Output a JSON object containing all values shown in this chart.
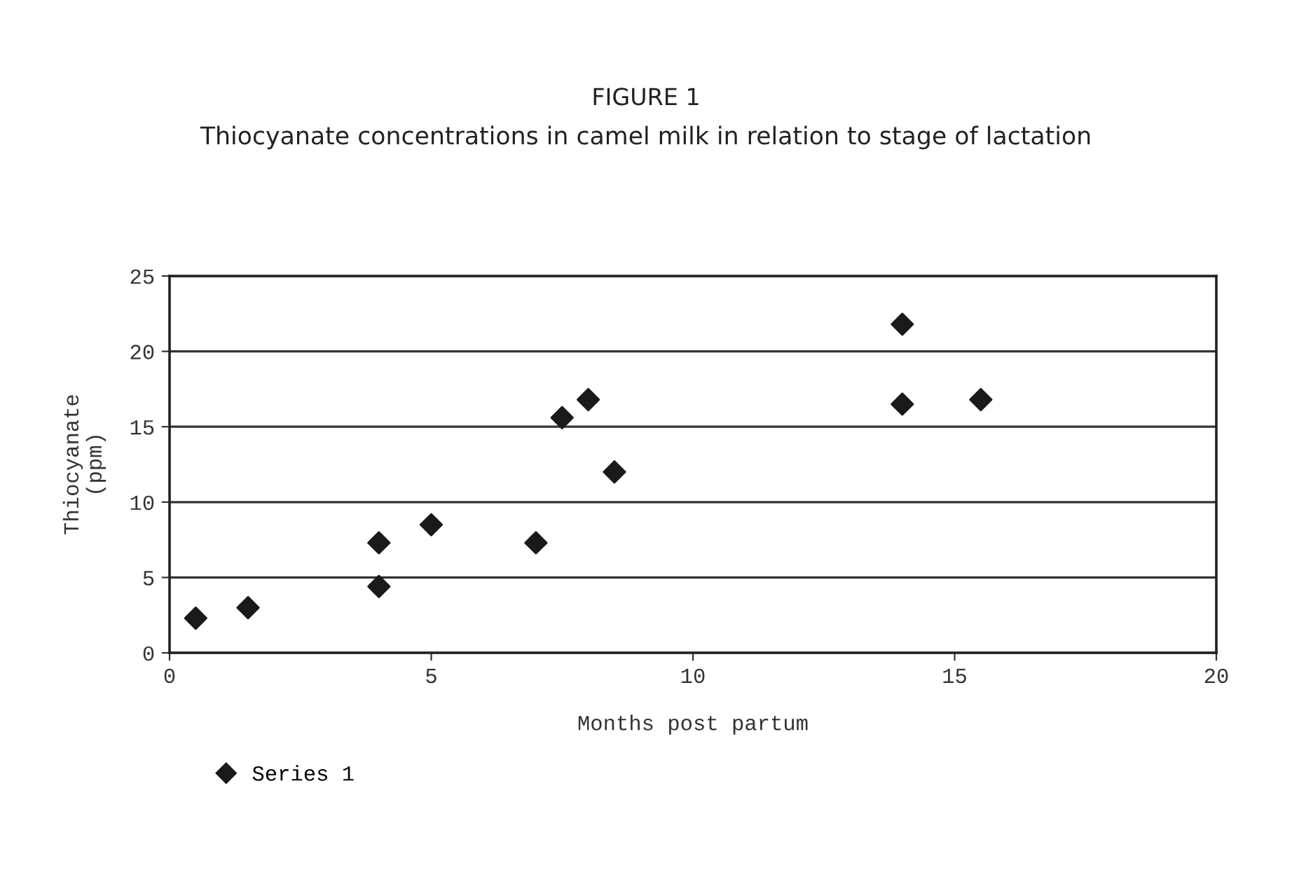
{
  "chart_data": {
    "type": "scatter",
    "title": "FIGURE 1",
    "subtitle": "Thiocyanate concentrations in camel milk in relation to stage of lactation",
    "xlabel": "Months post partum",
    "ylabel": "Thiocyanate\n(ppm)",
    "x": [
      0.5,
      1.5,
      4,
      4,
      5,
      7,
      7.5,
      8,
      8.5,
      14,
      14,
      15.5
    ],
    "series": [
      {
        "name": "Series 1",
        "color": "#1a1a1a",
        "values": [
          2.3,
          3.0,
          7.3,
          4.4,
          8.5,
          7.3,
          15.6,
          16.8,
          12.0,
          21.8,
          16.5,
          16.8
        ]
      }
    ],
    "xlim": [
      0,
      20
    ],
    "xticks": [
      0,
      5,
      10,
      15,
      20
    ],
    "ylim": [
      0,
      25
    ],
    "yticks": [
      0,
      5,
      10,
      15,
      20,
      25
    ],
    "grid": "y",
    "legend": "bottom left",
    "marker": "diamond"
  }
}
